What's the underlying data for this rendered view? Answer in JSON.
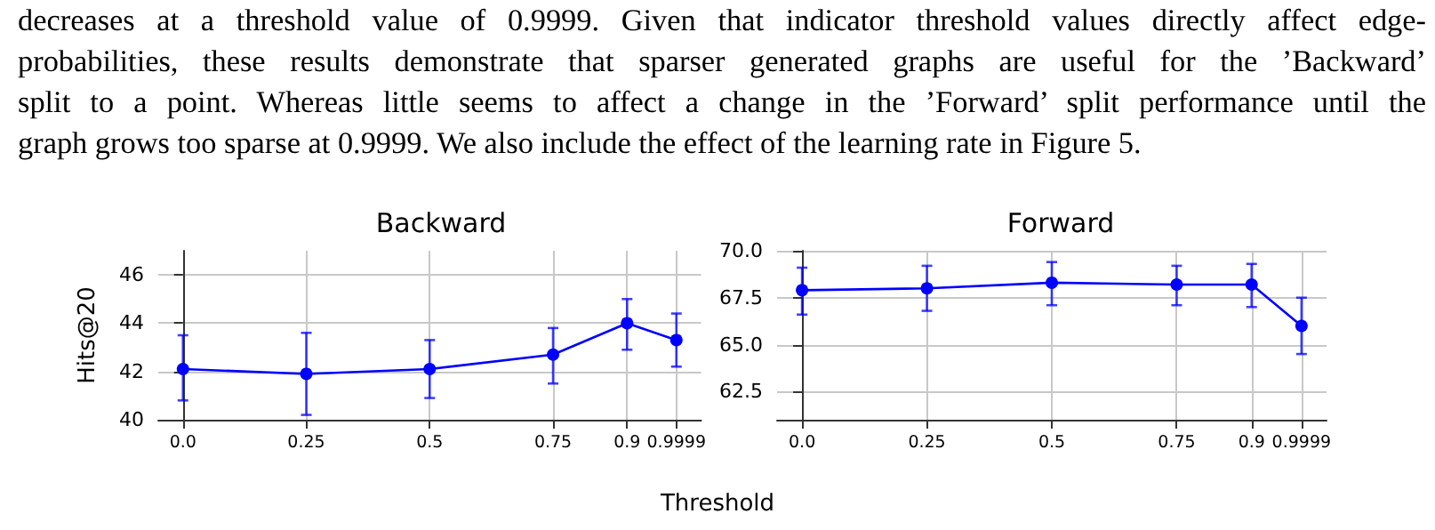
{
  "chart_data": [
    {
      "type": "line",
      "title": "Backward",
      "xlabel": "Threshold",
      "ylabel": "Hits@20",
      "annotations": [
        "decreases at a threshold value of 0.9999. Given that indicator threshold values directly affect edge-",
        "probabilities, these results demonstrate that sparser generated graphs are useful for the ’Backward’",
        "split to a point. Whereas little seems to affect a change in the ’Forward’ split performance until the",
        "graph grows too sparse at 0.9999. We also include the effect of the learning rate in Figure 5."
      ],
      "x": [
        0,
        0.25,
        0.5,
        0.75,
        0.9,
        0.9999
      ],
      "series": [
        {
          "color": "#0000ff",
          "values": [
            42.1,
            41.9,
            42.1,
            42.7,
            44.0,
            43.3
          ],
          "errors": [
            [
              40.8,
              43.5
            ],
            [
              40.2,
              43.6
            ],
            [
              40.9,
              43.3
            ],
            [
              41.5,
              43.8
            ],
            [
              42.9,
              45.0
            ],
            [
              42.2,
              44.4
            ]
          ]
        }
      ],
      "xlim": [
        -0.05,
        1.05
      ],
      "xticks": [
        {
          "value": 0,
          "label": "0.0"
        },
        0.25,
        0.5,
        0.75,
        0.9,
        0.9999
      ],
      "ylim": [
        40,
        47
      ],
      "yticks": [
        40,
        42,
        44,
        46
      ],
      "grid": true,
      "marker": "circle",
      "line_style": "solid"
    },
    {
      "type": "line",
      "title": "Forward",
      "x": [
        0,
        0.25,
        0.5,
        0.75,
        0.9,
        0.9999
      ],
      "series": [
        {
          "color": "#0000ff",
          "values": [
            67.9,
            68.0,
            68.3,
            68.2,
            68.2,
            66.0
          ],
          "errors": [
            [
              66.6,
              69.1
            ],
            [
              66.8,
              69.2
            ],
            [
              67.1,
              69.4
            ],
            [
              67.1,
              69.2
            ],
            [
              67.0,
              69.3
            ],
            [
              64.5,
              67.5
            ]
          ]
        }
      ],
      "xlim": [
        -0.05,
        1.05
      ],
      "xticks": [
        {
          "value": 0,
          "label": "0.0"
        },
        0.25,
        0.5,
        0.75,
        0.9,
        0.9999
      ],
      "ylim": [
        61,
        70
      ],
      "yticks": [
        {
          "value": 62.5,
          "label": "62.5"
        },
        {
          "value": 65,
          "label": "65.0"
        },
        {
          "value": 67.5,
          "label": "67.5"
        },
        {
          "value": 70,
          "label": "70.0"
        }
      ],
      "grid": true,
      "marker": "circle",
      "line_style": "solid"
    }
  ]
}
